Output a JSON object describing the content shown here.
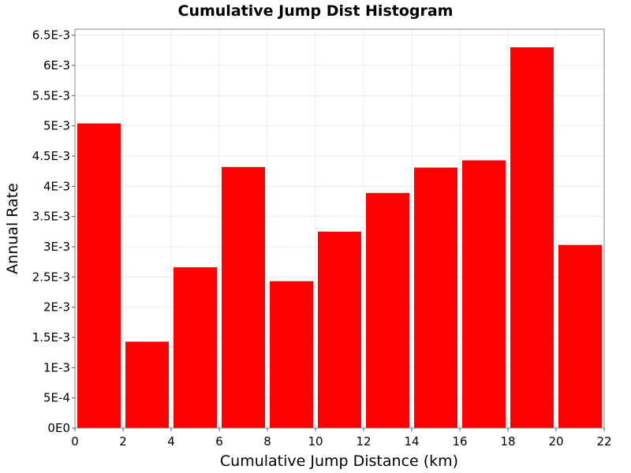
{
  "chart_data": {
    "type": "bar",
    "title": "Cumulative Jump Dist Histogram",
    "xlabel": "Cumulative Jump Distance (km)",
    "ylabel": "Annual Rate",
    "xlim": [
      0,
      22
    ],
    "ylim": [
      0,
      0.0066
    ],
    "x_ticks": [
      "0",
      "2",
      "4",
      "6",
      "8",
      "10",
      "12",
      "14",
      "16",
      "18",
      "20",
      "22"
    ],
    "y_ticks": [
      "0E0",
      "5E-4",
      "1E-3",
      "1.5E-3",
      "2E-3",
      "2.5E-3",
      "3E-3",
      "3.5E-3",
      "4E-3",
      "4.5E-3",
      "5E-3",
      "5.5E-3",
      "6E-3",
      "6.5E-3"
    ],
    "bins": [
      {
        "start": 0,
        "end": 2,
        "value": 0.00504
      },
      {
        "start": 2,
        "end": 4,
        "value": 0.00143
      },
      {
        "start": 4,
        "end": 6,
        "value": 0.00266
      },
      {
        "start": 6,
        "end": 8,
        "value": 0.00432
      },
      {
        "start": 8,
        "end": 10,
        "value": 0.00243
      },
      {
        "start": 10,
        "end": 12,
        "value": 0.00325
      },
      {
        "start": 12,
        "end": 14,
        "value": 0.00389
      },
      {
        "start": 14,
        "end": 16,
        "value": 0.00431
      },
      {
        "start": 16,
        "end": 18,
        "value": 0.00443
      },
      {
        "start": 18,
        "end": 20,
        "value": 0.0063
      },
      {
        "start": 20,
        "end": 22,
        "value": 0.00303
      }
    ],
    "bar_color": "#ff0000",
    "grid": true,
    "legend": "none"
  }
}
